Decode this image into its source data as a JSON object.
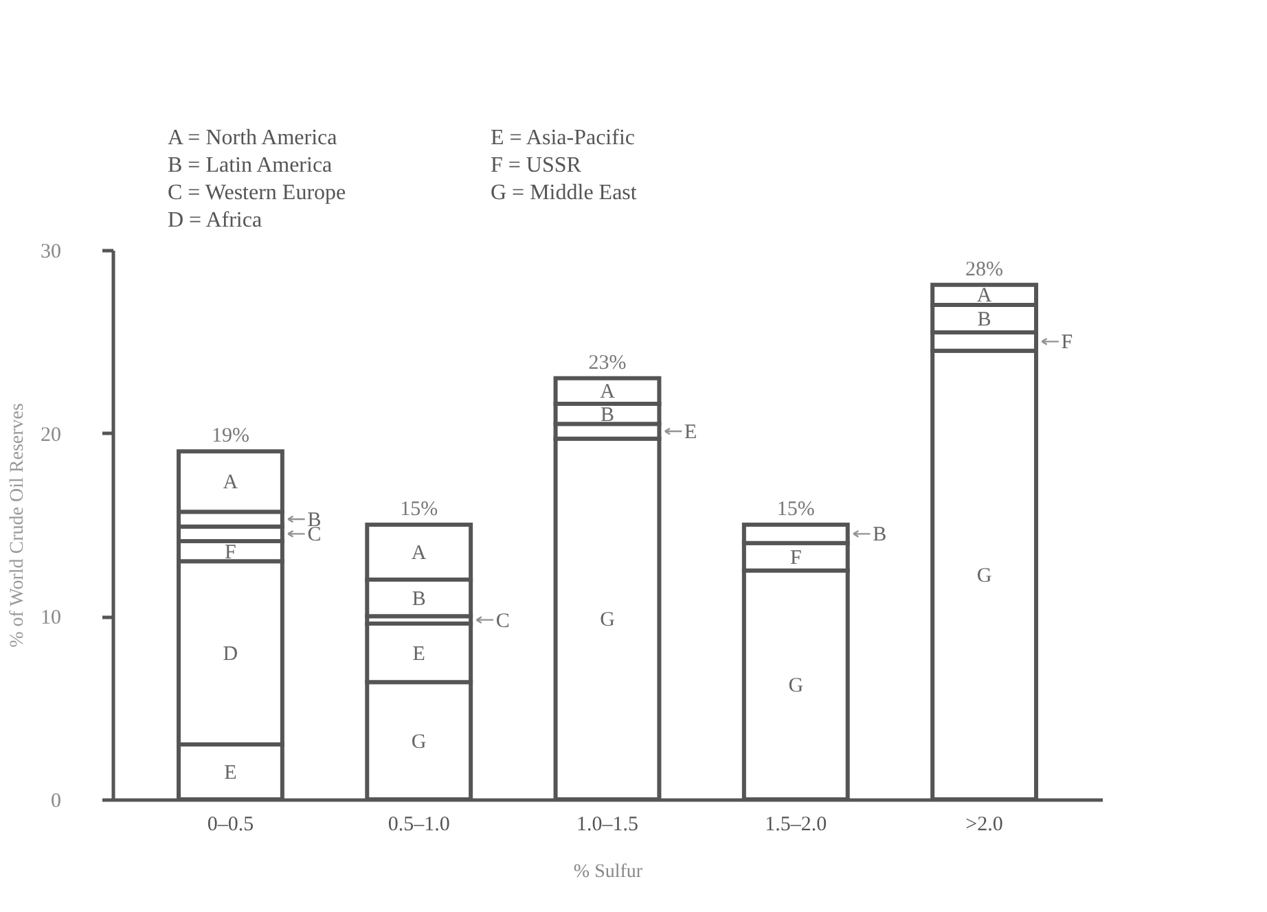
{
  "chart_data": {
    "type": "bar",
    "stacked": true,
    "xlabel": "% Sulfur",
    "ylabel": "% of World Crude Oil Reserves",
    "categories": [
      "0–0.5",
      "0.5–1.0",
      "1.0–1.5",
      "1.5–2.0",
      ">2.0"
    ],
    "series": [
      {
        "name": "G",
        "color": "#ffffff",
        "values": [
          null,
          6.4,
          19.7,
          12.5,
          24.5
        ]
      },
      {
        "name": "E",
        "color": "#ffffff",
        "values": [
          3,
          3.2,
          0.8,
          null,
          null
        ]
      },
      {
        "name": "D",
        "color": "#ffffff",
        "values": [
          10,
          null,
          null,
          null,
          null
        ]
      },
      {
        "name": "F",
        "color": "#ffffff",
        "values": [
          1.1,
          null,
          null,
          1.5,
          1
        ]
      },
      {
        "name": "C",
        "color": "#ffffff",
        "values": [
          0.8,
          0.4,
          null,
          null,
          null
        ]
      },
      {
        "name": "B",
        "color": "#ffffff",
        "values": [
          0.8,
          2,
          1.1,
          1,
          1.5
        ]
      },
      {
        "name": "A",
        "color": "#ffffff",
        "values": [
          3.3,
          3,
          1.4,
          null,
          1.1
        ]
      }
    ],
    "totals": [
      "19%",
      "15%",
      "23%",
      "15%",
      "28%"
    ],
    "ylim": [
      0,
      30
    ],
    "yticks": [
      0,
      10,
      20,
      30
    ],
    "grid": false,
    "annotations": [
      "A  =  North America",
      "B  =  Latin America",
      "C  =  Western Europe",
      "D  =  Africa",
      "E  =  Asia-Pacific",
      "F  =  USSR",
      "G  =  Middle East"
    ]
  }
}
